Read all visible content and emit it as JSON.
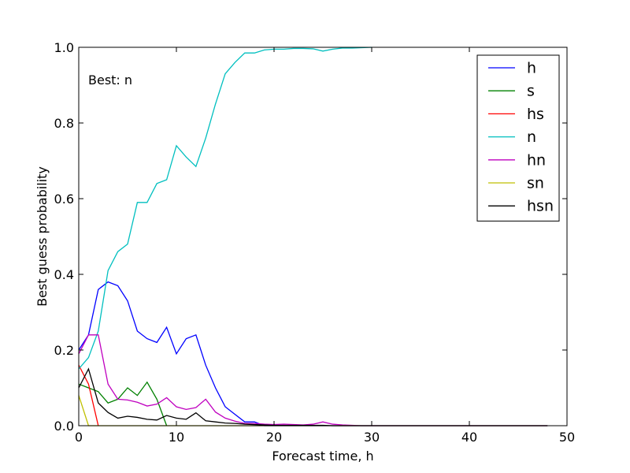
{
  "chart_data": {
    "type": "line",
    "title": "",
    "xlabel": "Forecast time, h",
    "ylabel": "Best guess probability",
    "xlim": [
      0,
      50
    ],
    "ylim": [
      0,
      1.0
    ],
    "xticks": [
      0,
      10,
      20,
      30,
      40,
      50
    ],
    "xtick_labels": [
      "0",
      "10",
      "20",
      "30",
      "40",
      "50"
    ],
    "yticks": [
      0,
      0.2,
      0.4,
      0.6,
      0.8,
      1.0
    ],
    "ytick_labels": [
      "0.0",
      "0.2",
      "0.4",
      "0.6",
      "0.8",
      "1.0"
    ],
    "grid": false,
    "legend_position": "top-right",
    "annotation": "Best: n",
    "series": [
      {
        "name": "h",
        "color": "#0000ff",
        "x": [
          0,
          1,
          2,
          3,
          4,
          5,
          6,
          7,
          8,
          9,
          10,
          11,
          12,
          13,
          14,
          15,
          16,
          17,
          18,
          19,
          20,
          21,
          22,
          23,
          24,
          25,
          26,
          27,
          28,
          29,
          30,
          31,
          32,
          33,
          34,
          35,
          36,
          37,
          38,
          39,
          40,
          41,
          42,
          43,
          44,
          45,
          46,
          47,
          48
        ],
        "y": [
          0.2,
          0.24,
          0.36,
          0.38,
          0.37,
          0.33,
          0.25,
          0.23,
          0.22,
          0.26,
          0.19,
          0.23,
          0.24,
          0.16,
          0.1,
          0.05,
          0.03,
          0.01,
          0.01,
          0.0,
          0.0,
          0.0,
          0.0,
          0.0,
          0.0,
          0.0,
          0.0,
          0.0,
          0.0,
          0.0,
          0.0,
          0.0,
          0.0,
          0.0,
          0.0,
          0.0,
          0.0,
          0.0,
          0.0,
          0.0,
          0.0,
          0.0,
          0.0,
          0.0,
          0.0,
          0.0,
          0.0,
          0.0,
          0.0
        ]
      },
      {
        "name": "s",
        "color": "#008000",
        "x": [
          0,
          1,
          2,
          3,
          4,
          5,
          6,
          7,
          8,
          9
        ],
        "y": [
          0.11,
          0.1,
          0.09,
          0.06,
          0.07,
          0.1,
          0.08,
          0.115,
          0.07,
          0.0
        ]
      },
      {
        "name": "hs",
        "color": "#ff0000",
        "x": [
          0,
          1,
          2
        ],
        "y": [
          0.16,
          0.11,
          0.0
        ]
      },
      {
        "name": "n",
        "color": "#00bfbf",
        "x": [
          0,
          1,
          2,
          3,
          4,
          5,
          6,
          7,
          8,
          9,
          10,
          11,
          12,
          13,
          14,
          15,
          16,
          17,
          18,
          19,
          20,
          21,
          22,
          23,
          24,
          25,
          26,
          27,
          28,
          29,
          30
        ],
        "y": [
          0.15,
          0.18,
          0.25,
          0.41,
          0.46,
          0.48,
          0.59,
          0.59,
          0.64,
          0.65,
          0.74,
          0.71,
          0.685,
          0.76,
          0.85,
          0.93,
          0.96,
          0.985,
          0.985,
          0.993,
          0.995,
          0.995,
          0.997,
          0.997,
          0.996,
          0.99,
          0.995,
          0.998,
          0.998,
          0.999,
          1.0
        ]
      },
      {
        "name": "hn",
        "color": "#bf00bf",
        "x": [
          0,
          1,
          2,
          3,
          4,
          5,
          6,
          7,
          8,
          9,
          10,
          11,
          12,
          13,
          14,
          15,
          16,
          17,
          18,
          19,
          20,
          21,
          22,
          23,
          24,
          25,
          26,
          27,
          28,
          29,
          30,
          31,
          32,
          33,
          34,
          35,
          36,
          37,
          38,
          39,
          40,
          41,
          42,
          43,
          44,
          45,
          46,
          47,
          48
        ],
        "y": [
          0.19,
          0.24,
          0.24,
          0.11,
          0.07,
          0.068,
          0.062,
          0.052,
          0.057,
          0.074,
          0.05,
          0.043,
          0.048,
          0.07,
          0.036,
          0.02,
          0.012,
          0.006,
          0.006,
          0.004,
          0.003,
          0.004,
          0.003,
          0.002,
          0.004,
          0.01,
          0.004,
          0.002,
          0.001,
          0.0,
          0.0,
          0.0,
          0.0,
          0.0,
          0.0,
          0.0,
          0.0,
          0.0,
          0.0,
          0.0,
          0.0,
          0.0,
          0.0,
          0.0,
          0.0,
          0.0,
          0.0,
          0.0,
          0.0
        ]
      },
      {
        "name": "sn",
        "color": "#bfbf00",
        "x": [
          0,
          1,
          2,
          3,
          4,
          5,
          6,
          7,
          8,
          9,
          10,
          11,
          12,
          13,
          14,
          15,
          16,
          17,
          18,
          19,
          20,
          21,
          22,
          23,
          24,
          25,
          26,
          27,
          28,
          29,
          30,
          31,
          32,
          33,
          34,
          35,
          36,
          37,
          38,
          39,
          40,
          41,
          42,
          43,
          44,
          45,
          46,
          47,
          48
        ],
        "y": [
          0.08,
          0.0,
          0.0,
          0.0,
          0.0,
          0.0,
          0.0,
          0.0,
          0.0,
          0.0,
          0.0,
          0.0,
          0.0,
          0.0,
          0.0,
          0.0,
          0.0,
          0.0,
          0.0,
          0.0,
          0.0,
          0.0,
          0.0,
          0.0,
          0.0,
          0.0,
          0.0,
          0.0,
          0.0,
          0.0,
          0.0,
          0.0,
          0.0,
          0.0,
          0.0,
          0.0,
          0.0,
          0.0,
          0.0,
          0.0,
          0.0,
          0.0,
          0.0,
          0.0,
          0.0,
          0.0,
          0.0,
          0.0,
          0.0
        ]
      },
      {
        "name": "hsn",
        "color": "#000000",
        "x": [
          0,
          1,
          2,
          3,
          4,
          5,
          6,
          7,
          8,
          9,
          10,
          11,
          12,
          13,
          14,
          15,
          16,
          17,
          18,
          19,
          20,
          21,
          22,
          23,
          24,
          25,
          26,
          27,
          28,
          29,
          30,
          31,
          32,
          33,
          34,
          35,
          36,
          37,
          38,
          39,
          40,
          41,
          42,
          43,
          44,
          45,
          46,
          47,
          48
        ],
        "y": [
          0.1,
          0.15,
          0.06,
          0.035,
          0.02,
          0.025,
          0.022,
          0.017,
          0.015,
          0.027,
          0.02,
          0.017,
          0.034,
          0.013,
          0.01,
          0.007,
          0.006,
          0.004,
          0.003,
          0.002,
          0.001,
          0.001,
          0.001,
          0.001,
          0.001,
          0.001,
          0.0,
          0.0,
          0.0,
          0.0,
          0.0,
          0.0,
          0.0,
          0.0,
          0.0,
          0.0,
          0.0,
          0.0,
          0.0,
          0.0,
          0.0,
          0.0,
          0.0,
          0.0,
          0.0,
          0.0,
          0.0,
          0.0,
          0.0
        ]
      }
    ]
  }
}
